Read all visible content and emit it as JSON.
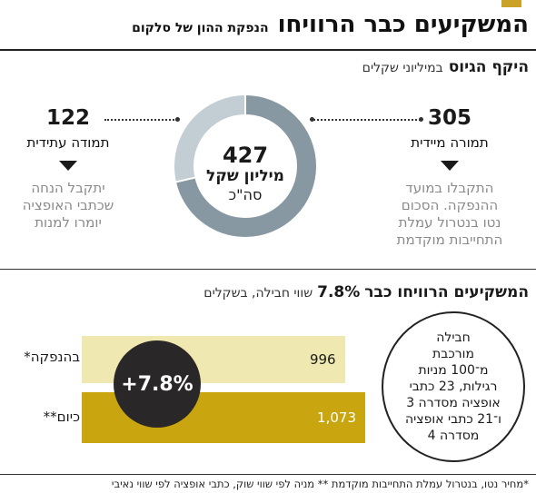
{
  "header": {
    "title": "המשקיעים כבר הרוויחו",
    "subtitle": "הנפקת ההון של סלקום"
  },
  "raise_section": {
    "title": "היקף הגיוס",
    "unit": "במיליוני שקלים",
    "immediate": {
      "value": "305",
      "label": "תמורה מיידית",
      "desc": [
        "התקבלו במועד",
        "ההנפקה. הסכום",
        "נטו בנטרול עמלת",
        "התחייבות מוקדמת"
      ]
    },
    "future": {
      "value": "122",
      "label": "תמודה עתידית",
      "desc": [
        "יתקבל הנחה",
        "שכתבי האופציה",
        "יומרו למנות"
      ]
    },
    "total": {
      "value": "427",
      "unit": "מיליון שקל",
      "label": "סה\"כ"
    }
  },
  "gain_section": {
    "title": "המשקיעים הרוויחו כבר",
    "pct_text": "7.8%",
    "note": "שווי חבילה, בשקלים",
    "badge": "+7.8%",
    "package_note": [
      "חבילה",
      "מורכבת",
      "מ־100 מניות",
      "רגילות, 23 כתבי",
      "אופציה מסדרה 3",
      "ו־21 כתבי אופציה",
      "מסדרה 4"
    ]
  },
  "footnote": "*מחיר נטו, בנטרול עמלת התחייבות מוקדמת ** מניה לפי שווי שוק, כתבי אופציה לפי שווי נאיבי",
  "colors": {
    "accent": "#c9a227",
    "immediate": "#8898a2",
    "future": "#c3ced4",
    "bar_offering": "#efe8b0",
    "bar_today": "#c9a50f",
    "badge": "#2a2728"
  },
  "chart_data": [
    {
      "type": "pie",
      "title": "היקף הגיוס",
      "subtitle": "במיליוני שקלים",
      "categories": [
        "תמורה מיידית",
        "תמודה עתידית"
      ],
      "values": [
        305,
        122
      ],
      "total": 427
    },
    {
      "type": "bar",
      "title": "המשקיעים הרוויחו כבר 7.8%",
      "subtitle": "שווי חבילה, בשקלים",
      "categories": [
        "בהנפקה*",
        "כיום**"
      ],
      "values": [
        996,
        1073
      ],
      "value_labels": [
        "996",
        "1,073"
      ],
      "change": "+7.8%"
    }
  ]
}
